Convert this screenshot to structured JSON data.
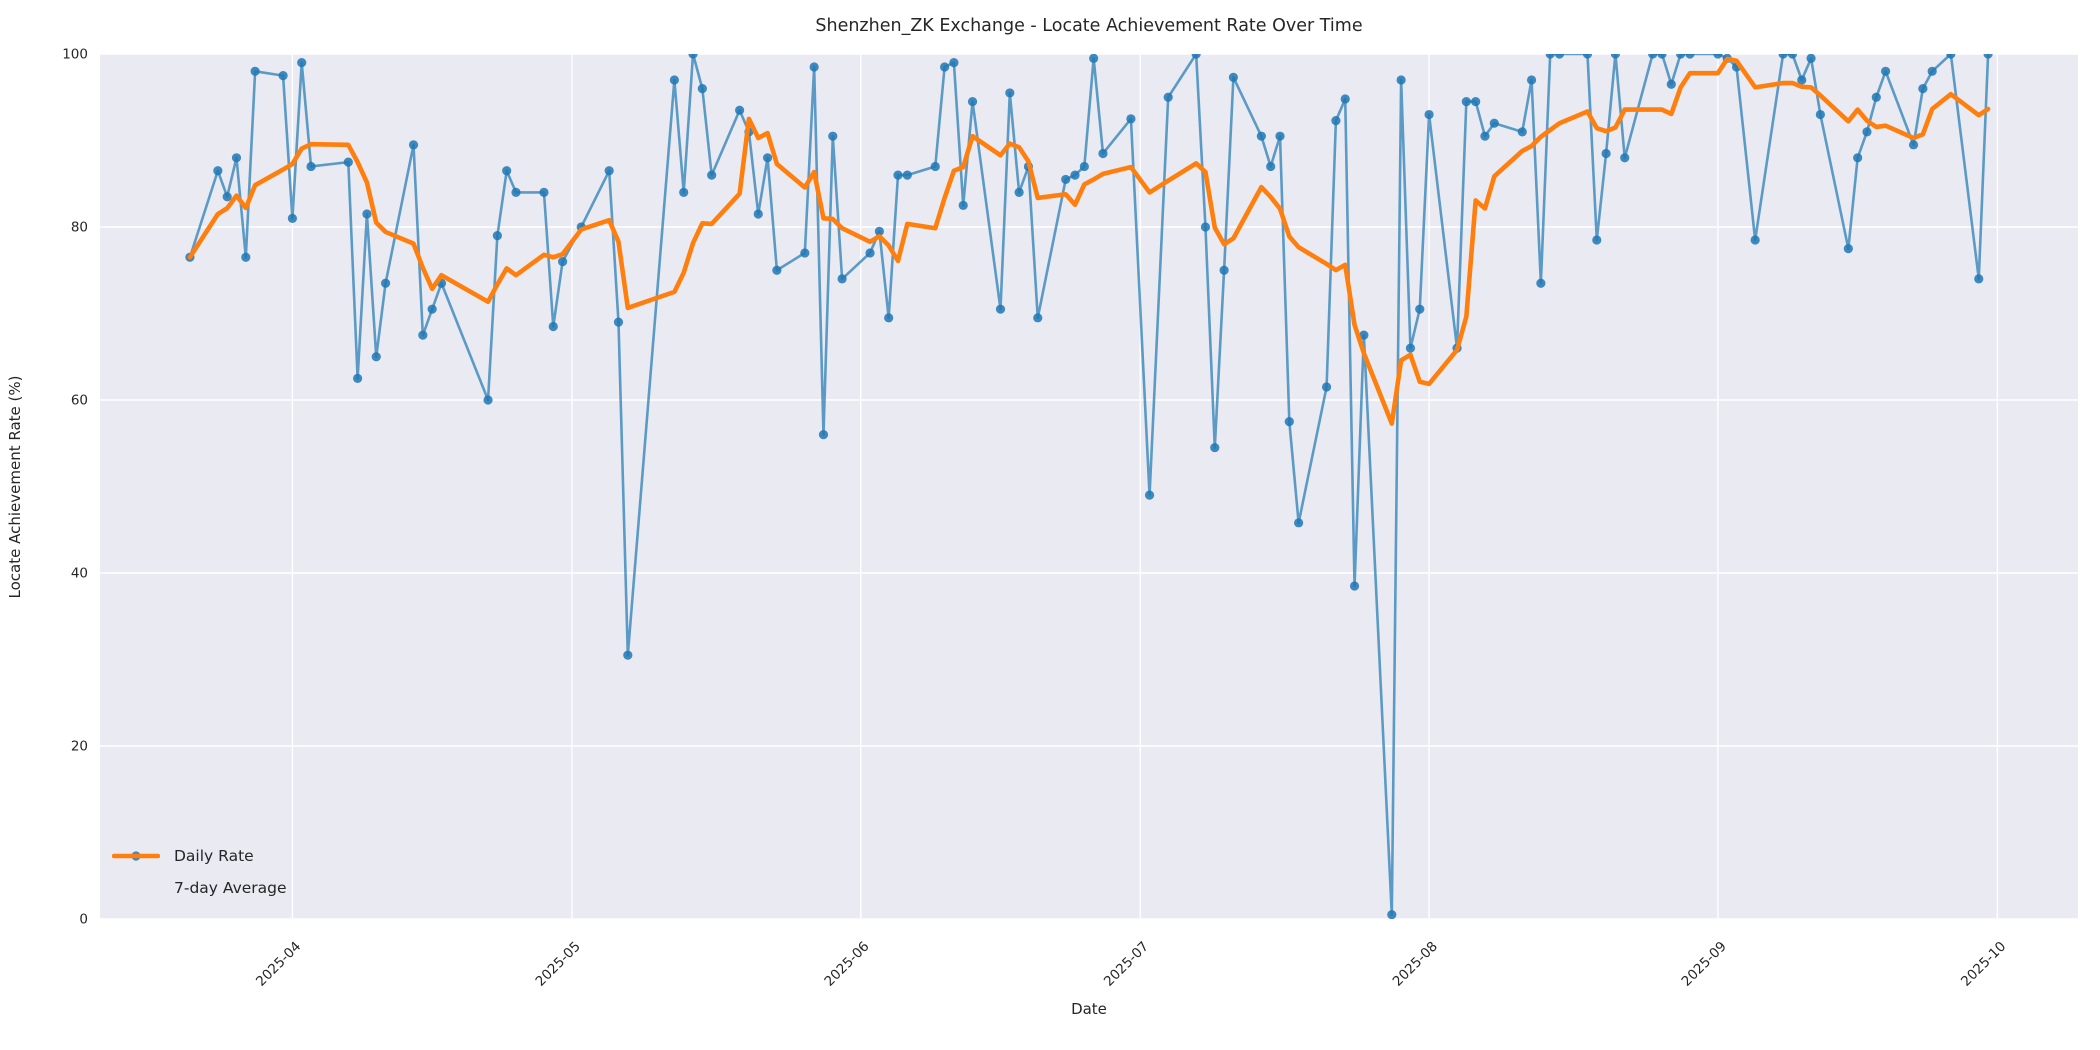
{
  "chart_data": {
    "type": "line",
    "title": "Shenzhen_ZK Exchange - Locate Achievement Rate Over Time",
    "xlabel": "Date",
    "ylabel": "Locate Achievement Rate (%)",
    "ylim": [
      0,
      100
    ],
    "yticks": [
      0,
      20,
      40,
      60,
      80,
      100
    ],
    "xticks": [
      {
        "label": "2025-04",
        "date": "2025-04-01"
      },
      {
        "label": "2025-05",
        "date": "2025-05-01"
      },
      {
        "label": "2025-06",
        "date": "2025-06-01"
      },
      {
        "label": "2025-07",
        "date": "2025-07-01"
      },
      {
        "label": "2025-08",
        "date": "2025-08-01"
      },
      {
        "label": "2025-09",
        "date": "2025-09-01"
      },
      {
        "label": "2025-10",
        "date": "2025-10-01"
      }
    ],
    "x_margin_frac": 0.05,
    "grid": true,
    "legend_position": "lower-left",
    "colors": {
      "plot_background": "#eaeaf2",
      "figure_background": "#ffffff",
      "gridline": "#ffffff",
      "text": "#262626",
      "daily": "#1f77b4",
      "average": "#ff7f0e"
    },
    "series": [
      {
        "name": "Daily Rate",
        "type": "line-with-markers",
        "color": "#1f77b4",
        "line_alpha": 0.7,
        "dates": [
          "2025-03-21",
          "2025-03-24",
          "2025-03-25",
          "2025-03-26",
          "2025-03-27",
          "2025-03-28",
          "2025-03-31",
          "2025-04-01",
          "2025-04-02",
          "2025-04-03",
          "2025-04-07",
          "2025-04-08",
          "2025-04-09",
          "2025-04-10",
          "2025-04-11",
          "2025-04-14",
          "2025-04-15",
          "2025-04-16",
          "2025-04-17",
          "2025-04-22",
          "2025-04-23",
          "2025-04-24",
          "2025-04-25",
          "2025-04-28",
          "2025-04-29",
          "2025-04-30",
          "2025-05-02",
          "2025-05-05",
          "2025-05-06",
          "2025-05-07",
          "2025-05-12",
          "2025-05-13",
          "2025-05-14",
          "2025-05-15",
          "2025-05-16",
          "2025-05-19",
          "2025-05-20",
          "2025-05-21",
          "2025-05-22",
          "2025-05-23",
          "2025-05-26",
          "2025-05-27",
          "2025-05-28",
          "2025-05-29",
          "2025-05-30",
          "2025-06-02",
          "2025-06-03",
          "2025-06-04",
          "2025-06-05",
          "2025-06-06",
          "2025-06-09",
          "2025-06-10",
          "2025-06-11",
          "2025-06-12",
          "2025-06-13",
          "2025-06-16",
          "2025-06-17",
          "2025-06-18",
          "2025-06-19",
          "2025-06-20",
          "2025-06-23",
          "2025-06-24",
          "2025-06-25",
          "2025-06-26",
          "2025-06-27",
          "2025-06-30",
          "2025-07-02",
          "2025-07-04",
          "2025-07-07",
          "2025-07-08",
          "2025-07-09",
          "2025-07-10",
          "2025-07-11",
          "2025-07-14",
          "2025-07-15",
          "2025-07-16",
          "2025-07-17",
          "2025-07-18",
          "2025-07-21",
          "2025-07-22",
          "2025-07-23",
          "2025-07-24",
          "2025-07-25",
          "2025-07-28",
          "2025-07-29",
          "2025-07-30",
          "2025-07-31",
          "2025-08-01",
          "2025-08-04",
          "2025-08-05",
          "2025-08-06",
          "2025-08-07",
          "2025-08-08",
          "2025-08-11",
          "2025-08-12",
          "2025-08-13",
          "2025-08-14",
          "2025-08-15",
          "2025-08-18",
          "2025-08-19",
          "2025-08-20",
          "2025-08-21",
          "2025-08-22",
          "2025-08-25",
          "2025-08-26",
          "2025-08-27",
          "2025-08-28",
          "2025-08-29",
          "2025-09-01",
          "2025-09-02",
          "2025-09-03",
          "2025-09-05",
          "2025-09-08",
          "2025-09-09",
          "2025-09-10",
          "2025-09-11",
          "2025-09-12",
          "2025-09-15",
          "2025-09-16",
          "2025-09-17",
          "2025-09-18",
          "2025-09-19",
          "2025-09-22",
          "2025-09-23",
          "2025-09-24",
          "2025-09-26",
          "2025-09-29",
          "2025-09-30"
        ],
        "values": [
          76.5,
          86.5,
          83.5,
          88,
          76.5,
          98,
          97.5,
          81,
          99,
          87,
          87.5,
          62.5,
          81.5,
          65,
          73.5,
          89.5,
          67.5,
          70.5,
          73.5,
          60,
          79,
          86.5,
          84,
          84,
          68.5,
          76,
          80,
          86.5,
          69,
          30.5,
          97,
          84,
          100,
          96,
          86,
          93.5,
          91,
          81.5,
          88,
          75,
          77,
          98.5,
          56,
          90.5,
          74,
          77,
          79.5,
          69.5,
          86,
          86,
          87,
          98.5,
          99,
          82.5,
          94.5,
          70.5,
          95.5,
          84,
          87,
          69.5,
          85.5,
          86,
          87,
          99.5,
          88.5,
          92.5,
          49,
          95,
          100,
          80,
          54.5,
          75,
          97.3,
          90.5,
          87,
          90.5,
          57.5,
          45.8,
          61.5,
          92.3,
          94.8,
          38.5,
          67.5,
          0.5,
          97,
          66,
          70.5,
          93,
          66,
          94.5,
          94.5,
          90.5,
          92,
          91,
          97,
          73.5,
          100,
          100,
          100,
          78.5,
          88.5,
          100,
          88,
          100,
          100,
          96.5,
          100,
          100,
          100,
          99.5,
          98.5,
          78.5,
          100,
          100,
          97,
          99.5,
          93,
          77.5,
          88,
          91,
          95,
          98,
          89.5,
          96,
          98,
          100,
          74,
          100
        ]
      },
      {
        "name": "7-day Average",
        "type": "line",
        "color": "#ff7f0e",
        "derived": "rolling-mean",
        "window": 7,
        "min_periods": 1
      }
    ]
  },
  "legend": {
    "items": [
      {
        "label": "Daily Rate"
      },
      {
        "label": "7-day Average"
      }
    ]
  }
}
